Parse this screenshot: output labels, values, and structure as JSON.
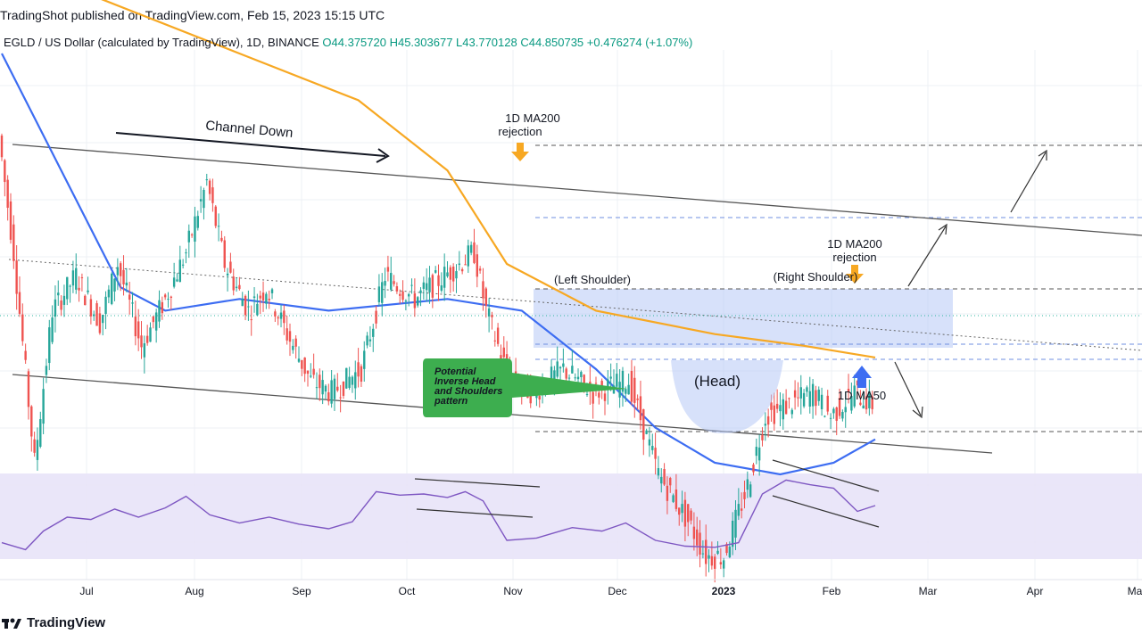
{
  "header": {
    "publisher": "TradingShot published on TradingView.com, Feb 15, 2023 15:15 UTC",
    "symbol": "EGLD / US Dollar (calculated by TradingView), 1D, BINANCE",
    "ohlc": "O44.375720  H45.303677  L43.770128  C44.850735  +0.476274 (+1.07%)"
  },
  "footer": {
    "brand": "TradingView",
    "logo_icon": "tradingview-logo-icon"
  },
  "chart_data": {
    "type": "candlestick",
    "symbol": "EGLD / US Dollar",
    "interval": "1D",
    "x_ticks": [
      "Jul",
      "Aug",
      "Sep",
      "Oct",
      "Nov",
      "Dec",
      "2023",
      "Feb",
      "Mar",
      "Apr",
      "May"
    ],
    "y_range_usd": [
      30,
      75
    ],
    "price_path": [
      [
        0,
        68
      ],
      [
        5,
        58
      ],
      [
        12,
        40
      ],
      [
        18,
        53
      ],
      [
        26,
        56
      ],
      [
        34,
        52
      ],
      [
        40,
        57
      ],
      [
        48,
        50
      ],
      [
        56,
        54
      ],
      [
        63,
        58
      ],
      [
        70,
        64
      ],
      [
        76,
        57
      ],
      [
        84,
        53
      ],
      [
        90,
        55
      ],
      [
        97,
        51
      ],
      [
        105,
        47
      ],
      [
        112,
        46
      ],
      [
        122,
        48
      ],
      [
        130,
        56
      ],
      [
        140,
        54
      ],
      [
        150,
        56
      ],
      [
        160,
        58
      ],
      [
        164,
        53
      ],
      [
        172,
        47
      ],
      [
        180,
        46
      ],
      [
        190,
        48
      ],
      [
        200,
        46
      ],
      [
        212,
        47
      ],
      [
        222,
        39
      ],
      [
        232,
        35
      ],
      [
        238,
        32
      ],
      [
        244,
        32
      ],
      [
        252,
        38
      ],
      [
        258,
        44
      ],
      [
        266,
        45
      ],
      [
        274,
        46
      ],
      [
        280,
        44
      ],
      [
        288,
        46
      ],
      [
        294,
        45
      ]
    ],
    "series": [
      {
        "name": "1D MA200",
        "color": "#f7a823",
        "values": [
          [
            30,
            80
          ],
          [
            80,
            75
          ],
          [
            120,
            71
          ],
          [
            150,
            65
          ],
          [
            170,
            57
          ],
          [
            200,
            53
          ],
          [
            240,
            51
          ],
          [
            270,
            50
          ],
          [
            294,
            49
          ]
        ]
      },
      {
        "name": "1D MA50",
        "color": "#3d6df2",
        "values": [
          [
            0,
            75
          ],
          [
            20,
            65
          ],
          [
            40,
            55
          ],
          [
            55,
            53
          ],
          [
            80,
            54
          ],
          [
            110,
            53
          ],
          [
            150,
            54
          ],
          [
            175,
            53
          ],
          [
            200,
            48
          ],
          [
            220,
            43
          ],
          [
            240,
            40
          ],
          [
            262,
            39
          ],
          [
            280,
            40
          ],
          [
            294,
            42
          ]
        ]
      }
    ],
    "annotations": {
      "channel": "Channel Down",
      "ma200_rejection_1": [
        "1D MA200",
        "rejection"
      ],
      "ma200_rejection_2": [
        "1D MA200",
        "rejection"
      ],
      "left_shoulder": "(Left Shoulder)",
      "right_shoulder": "(Right Shoulder)",
      "head": "(Head)",
      "ma50": "1D MA50",
      "pattern_callout": [
        "Potential",
        "Inverse Head",
        "and Shoulders",
        "pattern"
      ]
    },
    "rsi_range": [
      0,
      100
    ],
    "rsi_band": [
      30,
      70
    ],
    "rsi_values": [
      [
        0,
        28
      ],
      [
        8,
        22
      ],
      [
        14,
        38
      ],
      [
        22,
        50
      ],
      [
        30,
        48
      ],
      [
        38,
        57
      ],
      [
        46,
        50
      ],
      [
        55,
        58
      ],
      [
        62,
        68
      ],
      [
        70,
        52
      ],
      [
        80,
        45
      ],
      [
        90,
        50
      ],
      [
        100,
        44
      ],
      [
        110,
        40
      ],
      [
        118,
        46
      ],
      [
        126,
        72
      ],
      [
        134,
        69
      ],
      [
        142,
        70
      ],
      [
        150,
        67
      ],
      [
        156,
        72
      ],
      [
        162,
        64
      ],
      [
        170,
        30
      ],
      [
        180,
        32
      ],
      [
        192,
        41
      ],
      [
        202,
        38
      ],
      [
        210,
        45
      ],
      [
        220,
        30
      ],
      [
        230,
        25
      ],
      [
        240,
        24
      ],
      [
        248,
        28
      ],
      [
        256,
        70
      ],
      [
        264,
        82
      ],
      [
        272,
        78
      ],
      [
        280,
        75
      ],
      [
        288,
        55
      ],
      [
        294,
        60
      ]
    ],
    "grid": true
  }
}
